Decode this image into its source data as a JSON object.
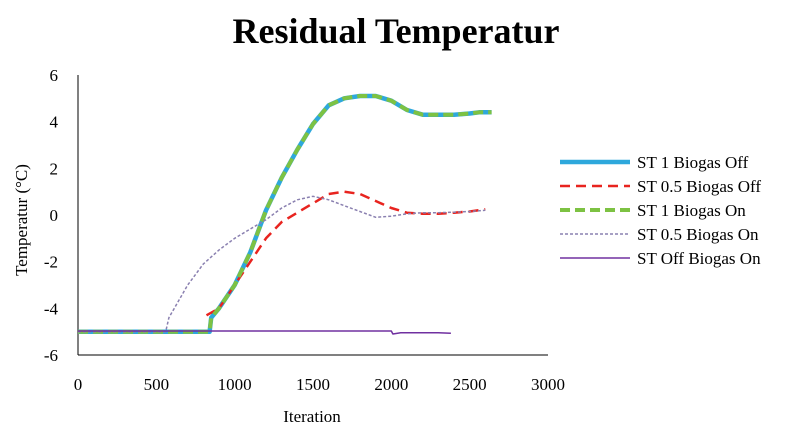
{
  "chart_data": {
    "type": "line",
    "title": "Residual Temperatur",
    "xlabel": "Iteration",
    "ylabel": "Temperatur (°C)",
    "xlim": [
      0,
      3000
    ],
    "ylim": [
      -6,
      6
    ],
    "xticks": [
      "0",
      "500",
      "1000",
      "1500",
      "2000",
      "2500",
      "3000"
    ],
    "yticks": [
      "-6",
      "-4",
      "-2",
      "0",
      "2",
      "4",
      "6"
    ],
    "grid": false,
    "legend_position": "right",
    "series": [
      {
        "name": "ST 1 Biogas Off",
        "color": "#2ea8dc",
        "style": "solid-thick",
        "x": [
          0,
          500,
          840,
          850,
          900,
          1000,
          1100,
          1200,
          1300,
          1400,
          1500,
          1600,
          1700,
          1800,
          1900,
          2000,
          2100,
          2200,
          2300,
          2400,
          2500,
          2560,
          2640
        ],
        "y": [
          -5.0,
          -5.0,
          -5.0,
          -4.4,
          -4.0,
          -3.0,
          -1.6,
          0.2,
          1.6,
          2.8,
          3.9,
          4.7,
          5.0,
          5.1,
          5.1,
          4.9,
          4.5,
          4.3,
          4.3,
          4.3,
          4.35,
          4.4,
          4.4
        ]
      },
      {
        "name": "ST 0.5 Biogas Off",
        "color": "#e8241f",
        "style": "dashed",
        "x": [
          820,
          900,
          1000,
          1100,
          1200,
          1300,
          1400,
          1500,
          1600,
          1700,
          1800,
          1900,
          2000,
          2100,
          2200,
          2300,
          2400,
          2500,
          2600
        ],
        "y": [
          -4.3,
          -4.0,
          -3.0,
          -2.0,
          -1.0,
          -0.3,
          0.1,
          0.5,
          0.9,
          1.0,
          0.9,
          0.6,
          0.3,
          0.1,
          0.05,
          0.05,
          0.1,
          0.15,
          0.25
        ]
      },
      {
        "name": "ST 1 Biogas On",
        "color": "#7dc243",
        "style": "dashed-thick",
        "x": [
          0,
          500,
          840,
          850,
          900,
          1000,
          1100,
          1200,
          1300,
          1400,
          1500,
          1600,
          1700,
          1800,
          1900,
          2000,
          2100,
          2200,
          2300,
          2400,
          2500,
          2560,
          2640
        ],
        "y": [
          -5.0,
          -5.0,
          -5.0,
          -4.4,
          -4.0,
          -3.0,
          -1.6,
          0.2,
          1.6,
          2.8,
          3.9,
          4.7,
          5.0,
          5.1,
          5.1,
          4.9,
          4.5,
          4.3,
          4.3,
          4.3,
          4.35,
          4.4,
          4.4
        ]
      },
      {
        "name": "ST 0.5 Biogas On",
        "color": "#8a80b0",
        "style": "dotted",
        "x": [
          0,
          560,
          580,
          700,
          800,
          900,
          1000,
          1100,
          1200,
          1300,
          1400,
          1500,
          1600,
          1700,
          1800,
          1900,
          2000,
          2100,
          2200,
          2300,
          2400,
          2500,
          2600
        ],
        "y": [
          -5.0,
          -5.0,
          -4.4,
          -3.0,
          -2.1,
          -1.5,
          -1.0,
          -0.6,
          -0.2,
          0.3,
          0.65,
          0.8,
          0.65,
          0.4,
          0.15,
          -0.1,
          -0.05,
          0.05,
          0.1,
          0.1,
          0.12,
          0.15,
          0.2
        ]
      },
      {
        "name": "ST Off Biogas On",
        "color": "#7030a0",
        "style": "solid-thin",
        "x": [
          0,
          500,
          1000,
          1500,
          2000,
          2010,
          2060,
          2100,
          2200,
          2300,
          2380
        ],
        "y": [
          -4.97,
          -4.97,
          -4.97,
          -4.97,
          -4.97,
          -5.1,
          -5.05,
          -5.05,
          -5.05,
          -5.05,
          -5.07
        ]
      }
    ]
  }
}
